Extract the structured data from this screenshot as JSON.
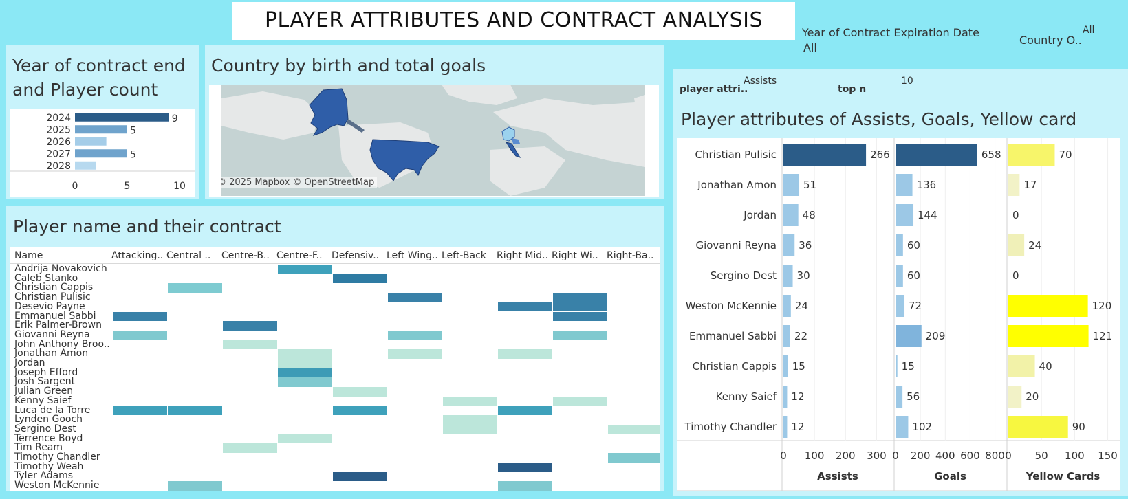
{
  "title": "PLAYER ATTRIBUTES AND CONTRACT ANALYSIS",
  "filters": {
    "contract_year_label": "Year of Contract Expiration Date",
    "contract_year_value": "All",
    "country_label": "Country O..",
    "country_value": "All",
    "player_attr_label": "player attri..",
    "player_attr_value": "Assists",
    "top_n_label": "top n",
    "top_n_value": "10"
  },
  "contract_panel": {
    "title_line1": "Year of contract end",
    "title_line2": "and Player count"
  },
  "map_panel": {
    "title": "Country by birth and total goals",
    "credit": "© 2025 Mapbox © OpenStreetMap"
  },
  "heatmap_panel": {
    "title": "Player name and their contract",
    "name_header": "Name",
    "columns": [
      "Attacking..",
      "Central ..",
      "Centre-B..",
      "Centre-F..",
      "Defensiv..",
      "Left Wing..",
      "Left-Back",
      "Right Mid..",
      "Right Wi..",
      "Right-Ba.."
    ],
    "rows": [
      {
        "name": "Andrija Novakovich",
        "cells": [
          [
            3,
            "#3ea1bb"
          ]
        ]
      },
      {
        "name": "Caleb Stanko",
        "cells": [
          [
            4,
            "#2e7ba3"
          ]
        ]
      },
      {
        "name": "Christian Cappis",
        "cells": [
          [
            1,
            "#7ecbd1"
          ]
        ]
      },
      {
        "name": "Christian Pulisic",
        "cells": [
          [
            5,
            "#3981a8"
          ],
          [
            8,
            "#3981a8"
          ]
        ]
      },
      {
        "name": "Desevio Payne",
        "cells": [
          [
            7,
            "#3981a8"
          ],
          [
            8,
            "#3981a8"
          ]
        ]
      },
      {
        "name": "Emmanuel Sabbi",
        "cells": [
          [
            0,
            "#3981a8"
          ],
          [
            8,
            "#3981a8"
          ]
        ]
      },
      {
        "name": "Erik Palmer-Brown",
        "cells": [
          [
            2,
            "#3981a8"
          ]
        ]
      },
      {
        "name": "Giovanni Reyna",
        "cells": [
          [
            0,
            "#80c9cf"
          ],
          [
            5,
            "#80c9cf"
          ],
          [
            8,
            "#80c9cf"
          ]
        ]
      },
      {
        "name": "John Anthony Broo..",
        "cells": [
          [
            2,
            "#bce6da"
          ]
        ]
      },
      {
        "name": "Jonathan Amon",
        "cells": [
          [
            3,
            "#bce6da"
          ],
          [
            5,
            "#bce6da"
          ],
          [
            7,
            "#bce6da"
          ]
        ]
      },
      {
        "name": "Jordan",
        "cells": [
          [
            3,
            "#bce6da"
          ]
        ]
      },
      {
        "name": "Joseph Efford",
        "cells": [
          [
            3,
            "#3d9bb6"
          ]
        ]
      },
      {
        "name": "Josh Sargent",
        "cells": [
          [
            3,
            "#80c9cf"
          ]
        ]
      },
      {
        "name": "Julian Green",
        "cells": [
          [
            4,
            "#bce6da"
          ]
        ]
      },
      {
        "name": "Kenny Saief",
        "cells": [
          [
            6,
            "#bce6da"
          ],
          [
            8,
            "#bce6da"
          ]
        ]
      },
      {
        "name": "Luca de la Torre",
        "cells": [
          [
            0,
            "#3ea1bb"
          ],
          [
            1,
            "#3ea1bb"
          ],
          [
            4,
            "#3ea1bb"
          ],
          [
            7,
            "#3ea1bb"
          ]
        ]
      },
      {
        "name": "Lynden Gooch",
        "cells": [
          [
            6,
            "#bce6da"
          ]
        ]
      },
      {
        "name": "Sergino Dest",
        "cells": [
          [
            6,
            "#bce6da"
          ],
          [
            9,
            "#bce6da"
          ]
        ]
      },
      {
        "name": "Terrence Boyd",
        "cells": [
          [
            3,
            "#bce6da"
          ]
        ]
      },
      {
        "name": "Tim Ream",
        "cells": [
          [
            2,
            "#bce6da"
          ]
        ]
      },
      {
        "name": "Timothy Chandler",
        "cells": [
          [
            9,
            "#80c9cf"
          ]
        ]
      },
      {
        "name": "Timothy Weah",
        "cells": [
          [
            7,
            "#2b5c88"
          ]
        ]
      },
      {
        "name": "Tyler Adams",
        "cells": [
          [
            4,
            "#2b5c88"
          ]
        ]
      },
      {
        "name": "Weston McKennie",
        "cells": [
          [
            1,
            "#80c9cf"
          ],
          [
            7,
            "#80c9cf"
          ]
        ]
      }
    ]
  },
  "attr_panel": {
    "title": "Player attributes of Assists, Goals, Yellow card"
  },
  "chart_data": [
    {
      "type": "bar",
      "orientation": "horizontal",
      "categories": [
        "2024",
        "2025",
        "2026",
        "2027",
        "2028"
      ],
      "values": [
        9,
        5,
        3,
        5,
        2
      ],
      "labels": [
        "9",
        "5",
        "",
        "5",
        ""
      ],
      "colors": [
        "#2b5c88",
        "#6fa3cc",
        "#a5cde8",
        "#6fa3cc",
        "#b7d9ef"
      ],
      "xlim": [
        0,
        10
      ],
      "xticks": [
        "0",
        "5",
        "10"
      ]
    },
    {
      "type": "bar",
      "orientation": "horizontal",
      "players": [
        "Christian Pulisic",
        "Jonathan Amon",
        "Jordan",
        "Giovanni Reyna",
        "Sergino Dest",
        "Weston McKennie",
        "Emmanuel Sabbi",
        "Christian Cappis",
        "Kenny Saief",
        "Timothy Chandler"
      ],
      "series": [
        {
          "name": "Assists",
          "values": [
            266,
            51,
            48,
            36,
            30,
            24,
            22,
            15,
            12,
            12
          ],
          "xlim": [
            0,
            350
          ],
          "ticks": [
            0,
            100,
            200,
            300
          ],
          "colors": [
            "#2b5c88",
            "#9cc8e6",
            "#9cc8e6",
            "#9cc8e6",
            "#9cc8e6",
            "#9cc8e6",
            "#9cc8e6",
            "#9cc8e6",
            "#9cc8e6",
            "#9cc8e6"
          ]
        },
        {
          "name": "Goals",
          "values": [
            658,
            136,
            144,
            60,
            60,
            72,
            209,
            15,
            56,
            102
          ],
          "xlim": [
            0,
            880
          ],
          "ticks": [
            0,
            200,
            400,
            600,
            800
          ],
          "colors": [
            "#2b5c88",
            "#9cc8e6",
            "#9cc8e6",
            "#9cc8e6",
            "#9cc8e6",
            "#9cc8e6",
            "#80b4dc",
            "#9cc8e6",
            "#9cc8e6",
            "#9cc8e6"
          ]
        },
        {
          "name": "Yellow Cards",
          "values": [
            70,
            17,
            0,
            24,
            0,
            120,
            121,
            40,
            20,
            90
          ],
          "xlim": [
            0,
            165
          ],
          "ticks": [
            0,
            50,
            100,
            150
          ],
          "colors": [
            "#f7f56a",
            "#f2f2c7",
            "#f2f2c7",
            "#f0f0b8",
            "#f2f2c7",
            "#ffff00",
            "#ffff00",
            "#f2f2a8",
            "#f2f2c7",
            "#f7f740"
          ]
        }
      ]
    }
  ]
}
